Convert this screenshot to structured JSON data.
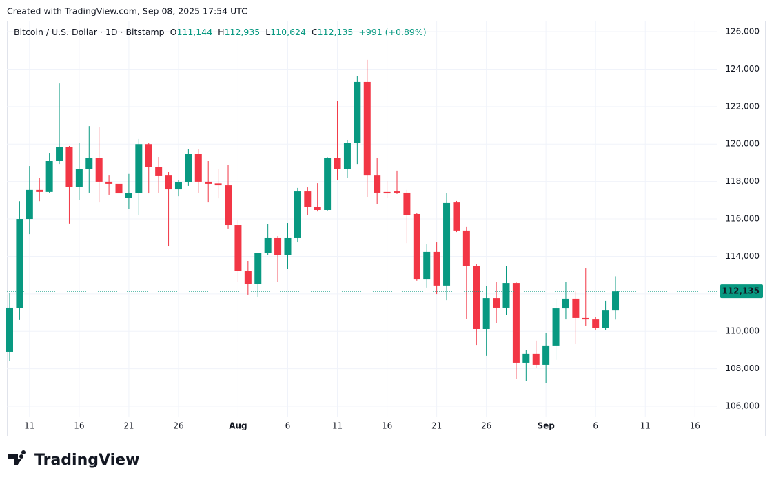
{
  "caption": "Created with TradingView.com, Sep 08, 2025 17:54 UTC",
  "brand": "TradingView",
  "header": {
    "symbol": "Bitcoin / U.S. Dollar · 1D · Bitstamp",
    "open_label": "O",
    "open": "111,144",
    "high_label": "H",
    "high": "112,935",
    "low_label": "L",
    "low": "110,624",
    "close_label": "C",
    "close": "112,135",
    "change": "+991 (+0.89%)"
  },
  "chart_data": {
    "type": "candlestick",
    "up_color": "#089981",
    "down_color": "#f23645",
    "grid": true,
    "categories": [
      null,
      null,
      "11",
      null,
      null,
      null,
      null,
      "16",
      null,
      null,
      null,
      null,
      "21",
      null,
      null,
      null,
      null,
      "26",
      null,
      null,
      null,
      null,
      null,
      "Aug",
      null,
      null,
      null,
      null,
      "6",
      null,
      null,
      null,
      null,
      "11",
      null,
      null,
      null,
      null,
      "16",
      null,
      null,
      null,
      null,
      "21",
      null,
      null,
      null,
      null,
      "26",
      null,
      null,
      null,
      null,
      null,
      "Sep",
      null,
      null,
      null,
      null,
      "6",
      null,
      null,
      null,
      null,
      "11",
      null,
      null,
      null,
      null,
      "16",
      null,
      null
    ],
    "open": [
      108907,
      111250,
      116000,
      117550,
      117440,
      119090,
      119860,
      117730,
      118680,
      119240,
      117990,
      117880,
      117140,
      117380,
      120000,
      118760,
      118350,
      117580,
      117950,
      119460,
      117990,
      117900,
      117800,
      115670,
      113210,
      112510,
      114200,
      115010,
      114090,
      115010,
      117470,
      116660,
      116480,
      119270,
      118680,
      120080,
      123320,
      118350,
      117440,
      117470,
      117400,
      116260,
      112800,
      114240,
      112440,
      116880,
      115380,
      113470,
      110120,
      111770,
      111260,
      112580,
      108320,
      108800,
      108210,
      109240,
      111220,
      111740,
      110710,
      110630,
      110190,
      111144,
      null,
      null,
      null,
      null,
      null,
      null,
      null,
      null,
      null,
      null
    ],
    "high": [
      112070,
      116950,
      118830,
      118200,
      119530,
      123240,
      119900,
      120050,
      120960,
      120890,
      118350,
      118870,
      118400,
      120270,
      120080,
      119310,
      118500,
      118060,
      119750,
      119750,
      119090,
      118680,
      118870,
      115930,
      113760,
      114200,
      115740,
      115080,
      115780,
      117660,
      117690,
      117910,
      119300,
      122290,
      120230,
      123650,
      124500,
      119270,
      118020,
      118580,
      117550,
      116300,
      114640,
      114750,
      117360,
      116960,
      115600,
      113580,
      112400,
      112620,
      113470,
      112620,
      108980,
      109500,
      109900,
      111740,
      112620,
      112180,
      113390,
      110780,
      111630,
      112935,
      null,
      null,
      null,
      null,
      null,
      null,
      null,
      null,
      null,
      null
    ],
    "low": [
      108390,
      110600,
      115190,
      116950,
      117400,
      118940,
      115750,
      117030,
      117400,
      116880,
      117290,
      116550,
      116550,
      116200,
      117360,
      117400,
      114530,
      117210,
      117770,
      117400,
      116880,
      117100,
      115490,
      112620,
      111960,
      111850,
      114090,
      112620,
      113350,
      114750,
      116190,
      116400,
      116450,
      118060,
      118200,
      118940,
      117180,
      116810,
      117140,
      117330,
      114710,
      112700,
      112330,
      111990,
      111660,
      115300,
      110670,
      109270,
      108690,
      110450,
      110860,
      107470,
      107360,
      108060,
      107250,
      108470,
      110630,
      109310,
      110270,
      110050,
      110050,
      110624,
      null,
      null,
      null,
      null,
      null,
      null,
      null,
      null,
      null,
      null
    ],
    "close": [
      111260,
      116000,
      117550,
      117440,
      119090,
      119860,
      117730,
      118680,
      119240,
      117990,
      117880,
      117360,
      117380,
      120000,
      118760,
      118320,
      117580,
      117950,
      119460,
      117990,
      117880,
      117800,
      115670,
      113210,
      112510,
      114200,
      115010,
      114090,
      115010,
      117470,
      116660,
      116480,
      119270,
      118680,
      120080,
      123320,
      118350,
      117400,
      117360,
      117400,
      116190,
      112800,
      114240,
      112440,
      116850,
      115380,
      113470,
      110120,
      111770,
      111260,
      112580,
      108320,
      108800,
      108210,
      109240,
      111220,
      111740,
      110710,
      110630,
      110190,
      111144,
      112135,
      null,
      null,
      null,
      null,
      null,
      null,
      null,
      null,
      null,
      null
    ],
    "ylim": [
      105450,
      126590
    ],
    "yticks": [
      {
        "value": 106000,
        "label": "106,000"
      },
      {
        "value": 108000,
        "label": "108,000"
      },
      {
        "value": 110000,
        "label": "110,000"
      },
      {
        "value": 112000,
        "label": "112,000"
      },
      {
        "value": 114000,
        "label": "114,000"
      },
      {
        "value": 116000,
        "label": "116,000"
      },
      {
        "value": 118000,
        "label": "118,000"
      },
      {
        "value": 120000,
        "label": "120,000"
      },
      {
        "value": 122000,
        "label": "122,000"
      },
      {
        "value": 124000,
        "label": "124,000"
      },
      {
        "value": 126000,
        "label": "126,000"
      }
    ],
    "last_price": {
      "value": 112135,
      "label": "112,135"
    }
  }
}
